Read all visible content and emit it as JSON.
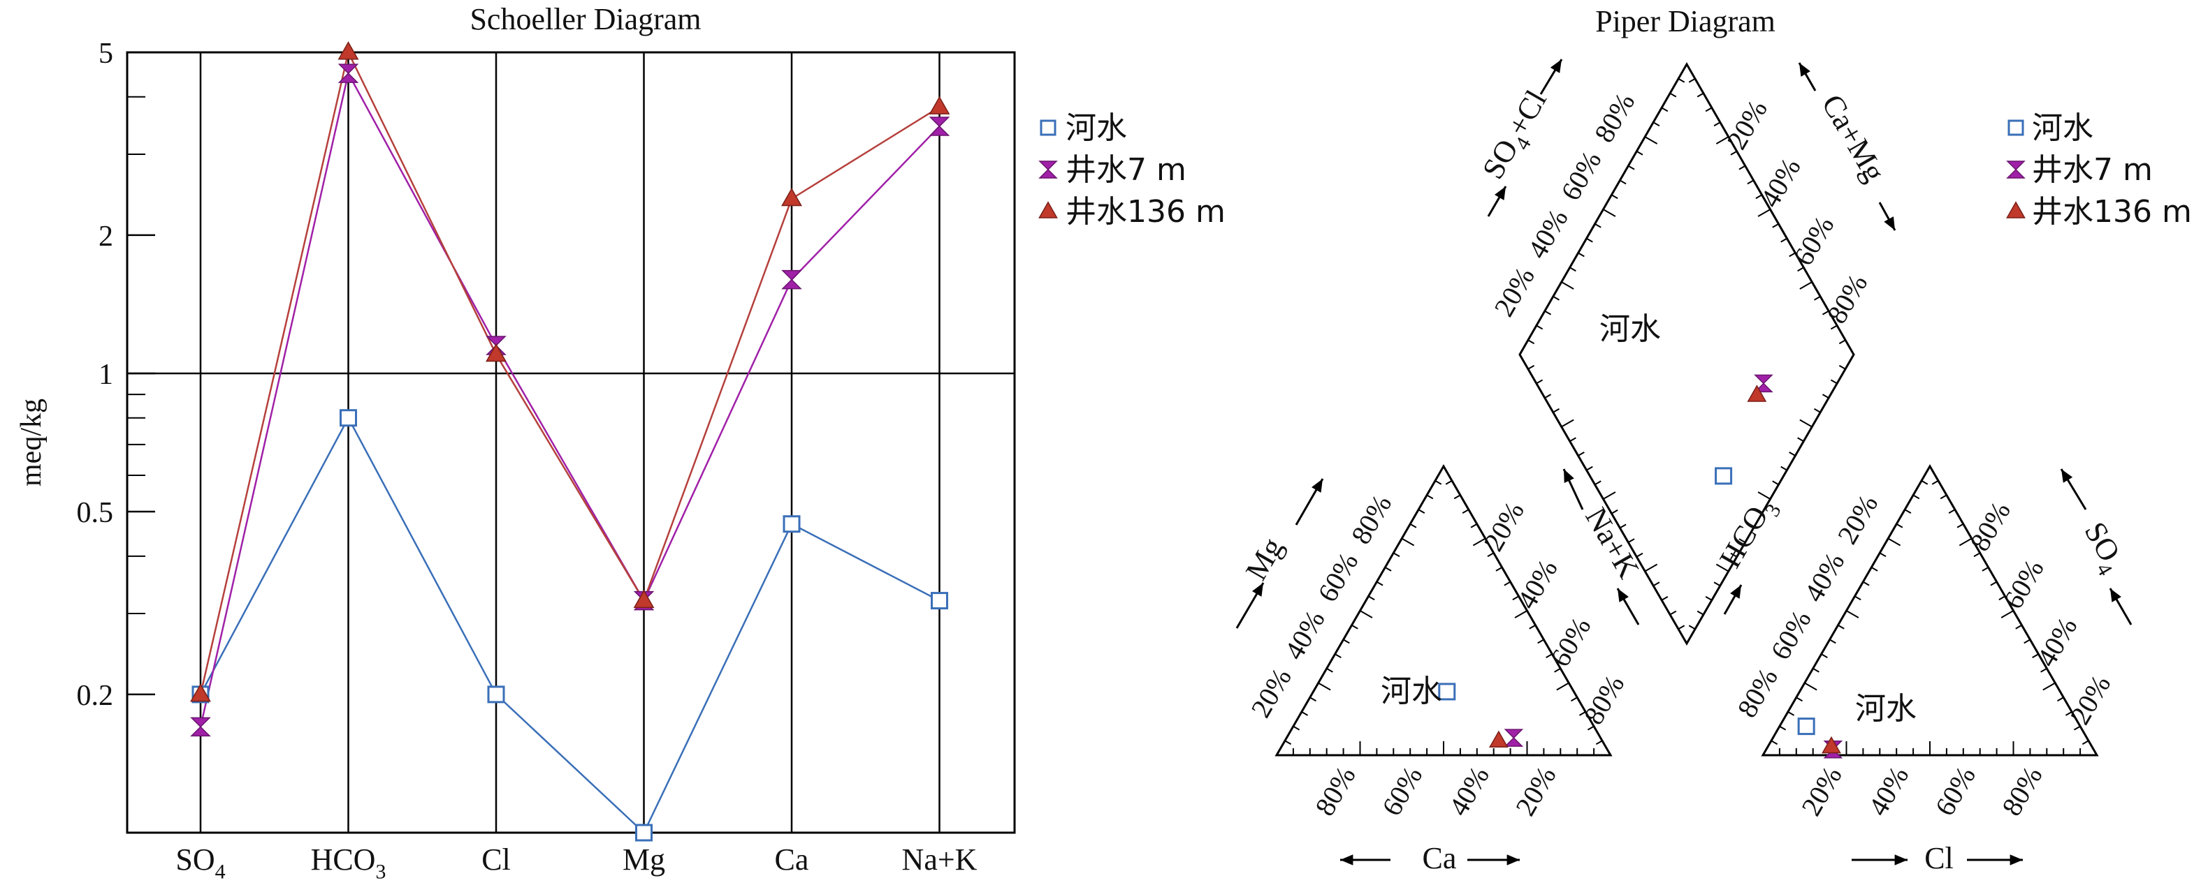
{
  "colors": {
    "river": "#3a6fb8",
    "well7": "#a020a8",
    "well136": "#c0392b",
    "well136_line": "#b5403c",
    "axis": "#000000"
  },
  "legend_entries": [
    "河水",
    "井水7 m",
    "井水136 m"
  ],
  "chart_data": [
    {
      "type": "line",
      "title": "Schoeller Diagram",
      "ylabel": "meq/kg",
      "xlabel": "",
      "yscale": "log",
      "ylim": [
        0.1,
        5
      ],
      "y_tick_labels": [
        "5",
        "2",
        "1",
        "0.5",
        "0.2"
      ],
      "y_ticks": [
        5,
        2,
        1,
        0.5,
        0.2
      ],
      "categories": [
        "SO4",
        "HCO3",
        "Cl",
        "Mg",
        "Ca",
        "Na+K"
      ],
      "series": [
        {
          "name": "河水",
          "marker": "open-square",
          "values": [
            0.2,
            0.8,
            0.2,
            0.1,
            0.47,
            0.32
          ]
        },
        {
          "name": "井水7 m",
          "marker": "hourglass",
          "values": [
            0.17,
            4.5,
            1.15,
            0.32,
            1.6,
            3.45
          ]
        },
        {
          "name": "井水136 m",
          "marker": "triangle",
          "values": [
            0.2,
            5.0,
            1.1,
            0.32,
            2.4,
            3.8
          ]
        }
      ],
      "grid": "vertical lines at categories, horizontal line at 1",
      "legend": "right"
    },
    {
      "type": "piper",
      "title": "Piper Diagram",
      "percent_tick_labels": [
        "20%",
        "40%",
        "60%",
        "80%"
      ],
      "axis_labels": {
        "cation_mg": "Mg",
        "cation_ca": "Ca",
        "cation_nak": "Na+K",
        "anion_hco3": "HCO3",
        "anion_so4": "SO4",
        "anion_cl": "Cl",
        "diamond_so4cl": "SO4+Cl",
        "diamond_camg": "Ca+Mg"
      },
      "series": [
        {
          "name": "河水",
          "cations_pct": {
            "Ca": 38,
            "Mg": 22,
            "NaK": 40
          },
          "anions_pct": {
            "HCO3": 82,
            "SO4": 10,
            "Cl": 8
          },
          "diamond_pct": {
            "CaMg": 60,
            "SO4Cl": 18
          }
        },
        {
          "name": "井水7 m",
          "cations_pct": {
            "Ca": 26,
            "Mg": 6,
            "NaK": 68
          },
          "anions_pct": {
            "HCO3": 78,
            "SO4": 2,
            "Cl": 20
          },
          "diamond_pct": {
            "CaMg": 32,
            "SO4Cl": 22
          }
        },
        {
          "name": "井水136 m",
          "cations_pct": {
            "Ca": 31,
            "Mg": 5,
            "NaK": 64
          },
          "anions_pct": {
            "HCO3": 78,
            "SO4": 3,
            "Cl": 19
          },
          "diamond_pct": {
            "CaMg": 36,
            "SO4Cl": 22
          }
        }
      ],
      "point_labels": [
        "河水",
        "河水",
        "河水"
      ],
      "legend": "top-right"
    }
  ]
}
